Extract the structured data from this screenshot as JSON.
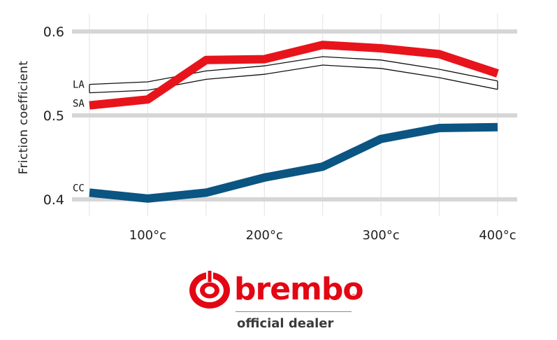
{
  "chart_data": {
    "type": "line",
    "ylabel": "Friction coefficient",
    "xlabel": "",
    "title": "",
    "x": [
      50,
      100,
      150,
      200,
      250,
      300,
      350,
      400
    ],
    "xtick_values": [
      100,
      200,
      300,
      400
    ],
    "xtick_labels": [
      "100°c",
      "200°c",
      "300°c",
      "400°c"
    ],
    "xlim": [
      45,
      405
    ],
    "ytick_values": [
      0.4,
      0.5,
      0.6
    ],
    "ytick_labels": [
      "0.4",
      "0.5",
      "0.6"
    ],
    "ylim": [
      0.38,
      0.61
    ],
    "grid": "on",
    "series": [
      {
        "name": "LA",
        "color": "#111111",
        "style": "outline",
        "values": [
          0.532,
          0.535,
          0.548,
          0.554,
          0.565,
          0.561,
          0.55,
          0.536
        ]
      },
      {
        "name": "SA",
        "color": "#e8141b",
        "style": "thick",
        "values": [
          0.512,
          0.519,
          0.566,
          0.567,
          0.584,
          0.58,
          0.573,
          0.55
        ]
      },
      {
        "name": "CC",
        "color": "#0a5582",
        "style": "thick",
        "values": [
          0.408,
          0.401,
          0.408,
          0.426,
          0.439,
          0.472,
          0.485,
          0.486
        ]
      }
    ]
  },
  "logo": {
    "brand": "brembo",
    "registered": "®",
    "tagline": "official dealer",
    "color": "#e30613"
  }
}
